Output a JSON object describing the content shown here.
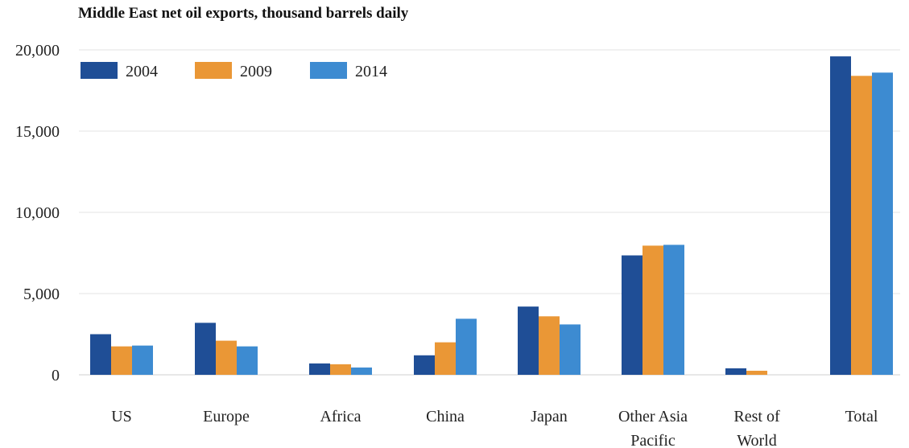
{
  "chart_data": {
    "type": "bar",
    "title": "Middle East net oil exports, thousand barrels daily",
    "xlabel": "",
    "ylabel": "",
    "categories": [
      "US",
      "Europe",
      "Africa",
      "China",
      "Japan",
      "Other Asia Pacific",
      "Rest of World",
      "Total"
    ],
    "category_lines": [
      [
        "US"
      ],
      [
        "Europe"
      ],
      [
        "Africa"
      ],
      [
        "China"
      ],
      [
        "Japan"
      ],
      [
        "Other Asia",
        "Pacific"
      ],
      [
        "Rest of",
        "World"
      ],
      [
        "Total"
      ]
    ],
    "series": [
      {
        "name": "2004",
        "color": "#1f4e96",
        "values": [
          2500,
          3200,
          700,
          1200,
          4200,
          7350,
          400,
          19600
        ]
      },
      {
        "name": "2009",
        "color": "#ea9736",
        "values": [
          1750,
          2100,
          650,
          2000,
          3600,
          7950,
          250,
          18400
        ]
      },
      {
        "name": "2014",
        "color": "#3d8bd1",
        "values": [
          1800,
          1750,
          450,
          3450,
          3100,
          8000,
          0,
          18600
        ]
      }
    ],
    "ylim": [
      0,
      20000
    ],
    "yticks": [
      0,
      5000,
      10000,
      15000,
      20000
    ],
    "ytick_labels": [
      "0",
      "5,000",
      "10,000",
      "15,000",
      "20,000"
    ],
    "grid": true,
    "legend_position": "top-left"
  }
}
